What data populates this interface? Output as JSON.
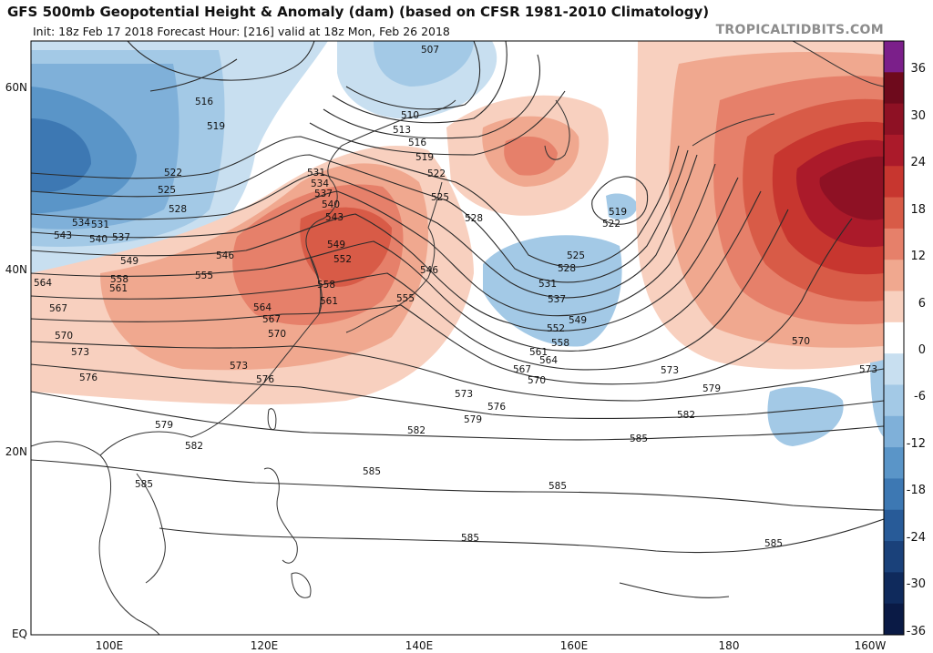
{
  "title": "GFS 500mb Geopotential Height & Anomaly (dam) (based on CFSR 1981-2010 Climatology)",
  "subtitle": "Init: 18z Feb 17 2018   Forecast Hour: [216]   valid at 18z Mon, Feb 26 2018",
  "brand": "TROPICALTIDBITS.COM",
  "lat_labels": [
    "60N",
    "40N",
    "20N",
    "EQ"
  ],
  "lon_labels": [
    "100E",
    "120E",
    "140E",
    "160E",
    "180",
    "160W"
  ],
  "colorbar": {
    "labels": [
      "36",
      "30",
      "24",
      "18",
      "12",
      "6",
      "0",
      "-6",
      "-12",
      "-18",
      "-24",
      "-30",
      "-36"
    ],
    "colors": [
      "#7b1f8a",
      "#6e0a1c",
      "#8e1124",
      "#ab1a2a",
      "#c7362f",
      "#d85b47",
      "#e6806a",
      "#f0a88f",
      "#f8d0bf",
      "#ffffff",
      "#c8dff0",
      "#a3c9e6",
      "#7fb0d9",
      "#5a95c8",
      "#3d78b3",
      "#285b98",
      "#1a417a",
      "#0f2a5c",
      "#0a1a45"
    ]
  },
  "contour_labels": [
    "507",
    "510",
    "513",
    "516",
    "516",
    "519",
    "519",
    "519",
    "522",
    "522",
    "522",
    "525",
    "525",
    "525",
    "528",
    "528",
    "528",
    "531",
    "531",
    "531",
    "534",
    "534",
    "537",
    "537",
    "537",
    "540",
    "540",
    "543",
    "543",
    "546",
    "546",
    "549",
    "549",
    "549",
    "552",
    "552",
    "555",
    "555",
    "558",
    "558",
    "558",
    "561",
    "561",
    "561",
    "564",
    "564",
    "564",
    "567",
    "567",
    "567",
    "570",
    "570",
    "570",
    "570",
    "573",
    "573",
    "573",
    "573",
    "573",
    "576",
    "576",
    "576",
    "579",
    "579",
    "579",
    "582",
    "582",
    "582",
    "585",
    "585",
    "585",
    "585",
    "585",
    "585"
  ]
}
